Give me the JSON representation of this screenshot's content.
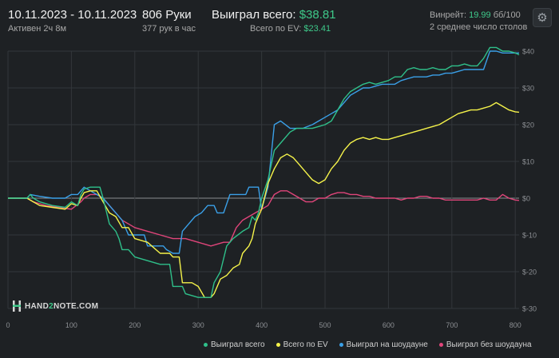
{
  "header": {
    "date_range": "10.11.2023 - 10.11.2023",
    "active_time": "Активен 2ч 8м",
    "hands": "806 Руки",
    "hands_per_hour": "377 рук в час",
    "won_total_label": "Выиграл всего:",
    "won_total_value": "$38.81",
    "ev_total_label": "Всего по EV:",
    "ev_total_value": "$23.41",
    "winrate_label": "Винрейт:",
    "winrate_value": "19.99",
    "winrate_unit": "бб/100",
    "tables_avg": "2 среднее число столов"
  },
  "logo": {
    "prefix": "HAND",
    "mid": "2",
    "suffix": "NOTE.COM"
  },
  "colors": {
    "background": "#1e2124",
    "won_total": "#2fc08a",
    "ev": "#f5f34a",
    "showdown": "#3aa0e8",
    "non_showdown": "#e0457a",
    "grid": "#33373b",
    "zero_line": "#8a8d90"
  },
  "chart_data": {
    "type": "line",
    "title": "",
    "xlabel": "",
    "ylabel": "",
    "xlim": [
      0,
      806
    ],
    "ylim": [
      -30,
      40
    ],
    "x_ticks": [
      0,
      100,
      200,
      300,
      400,
      500,
      600,
      700,
      800
    ],
    "y_ticks": [
      40,
      30,
      20,
      10,
      0,
      -10,
      -20,
      -30
    ],
    "y_tick_labels": [
      "$40",
      "$30",
      "$20",
      "$10",
      "$0",
      "$-10",
      "$-20",
      "$-30"
    ],
    "grid": true,
    "legend_position": "bottom",
    "series": [
      {
        "name": "Выиграл всего",
        "color_key": "won_total",
        "points": [
          [
            0,
            0
          ],
          [
            30,
            0
          ],
          [
            35,
            1
          ],
          [
            40,
            0
          ],
          [
            50,
            -1
          ],
          [
            70,
            -2
          ],
          [
            90,
            -2.5
          ],
          [
            100,
            -1
          ],
          [
            110,
            -2
          ],
          [
            115,
            1
          ],
          [
            120,
            2.5
          ],
          [
            130,
            3
          ],
          [
            145,
            3
          ],
          [
            150,
            0
          ],
          [
            160,
            -7
          ],
          [
            170,
            -9
          ],
          [
            175,
            -11
          ],
          [
            180,
            -14
          ],
          [
            190,
            -14
          ],
          [
            200,
            -16
          ],
          [
            220,
            -17
          ],
          [
            240,
            -18
          ],
          [
            255,
            -18
          ],
          [
            260,
            -24
          ],
          [
            275,
            -24
          ],
          [
            280,
            -26
          ],
          [
            300,
            -27
          ],
          [
            320,
            -27
          ],
          [
            325,
            -23
          ],
          [
            335,
            -20
          ],
          [
            345,
            -13
          ],
          [
            355,
            -11
          ],
          [
            370,
            -9
          ],
          [
            380,
            -8
          ],
          [
            385,
            -5
          ],
          [
            390,
            -6
          ],
          [
            395,
            -4
          ],
          [
            400,
            0
          ],
          [
            410,
            5
          ],
          [
            420,
            13
          ],
          [
            430,
            15
          ],
          [
            445,
            18
          ],
          [
            455,
            19
          ],
          [
            465,
            19
          ],
          [
            480,
            19
          ],
          [
            490,
            19.5
          ],
          [
            500,
            20
          ],
          [
            510,
            21
          ],
          [
            520,
            24
          ],
          [
            530,
            27
          ],
          [
            540,
            29
          ],
          [
            550,
            30
          ],
          [
            560,
            31
          ],
          [
            570,
            31.5
          ],
          [
            580,
            31
          ],
          [
            590,
            31.5
          ],
          [
            600,
            32
          ],
          [
            610,
            33
          ],
          [
            620,
            33
          ],
          [
            630,
            35
          ],
          [
            640,
            35.5
          ],
          [
            650,
            35
          ],
          [
            660,
            35
          ],
          [
            670,
            35.5
          ],
          [
            680,
            35
          ],
          [
            690,
            35
          ],
          [
            700,
            36
          ],
          [
            710,
            36
          ],
          [
            720,
            36.5
          ],
          [
            730,
            36
          ],
          [
            740,
            36
          ],
          [
            750,
            38
          ],
          [
            760,
            41
          ],
          [
            770,
            41
          ],
          [
            780,
            40
          ],
          [
            790,
            40
          ],
          [
            800,
            39.5
          ],
          [
            806,
            39
          ]
        ]
      },
      {
        "name": "Всего по EV",
        "color_key": "ev",
        "points": [
          [
            0,
            0
          ],
          [
            30,
            0
          ],
          [
            40,
            -1
          ],
          [
            50,
            -2
          ],
          [
            70,
            -2.5
          ],
          [
            90,
            -3
          ],
          [
            100,
            -1.5
          ],
          [
            110,
            -2
          ],
          [
            115,
            0
          ],
          [
            120,
            1.5
          ],
          [
            130,
            2
          ],
          [
            140,
            2
          ],
          [
            150,
            -1
          ],
          [
            160,
            -4
          ],
          [
            170,
            -5
          ],
          [
            180,
            -8
          ],
          [
            190,
            -8
          ],
          [
            200,
            -11
          ],
          [
            220,
            -12
          ],
          [
            240,
            -15
          ],
          [
            255,
            -15
          ],
          [
            260,
            -16
          ],
          [
            270,
            -16
          ],
          [
            275,
            -23
          ],
          [
            290,
            -23
          ],
          [
            300,
            -24
          ],
          [
            310,
            -27
          ],
          [
            320,
            -27
          ],
          [
            325,
            -26
          ],
          [
            335,
            -22
          ],
          [
            345,
            -21
          ],
          [
            355,
            -19
          ],
          [
            365,
            -18
          ],
          [
            370,
            -15
          ],
          [
            380,
            -13
          ],
          [
            385,
            -11
          ],
          [
            390,
            -7
          ],
          [
            395,
            -5
          ],
          [
            400,
            -3
          ],
          [
            410,
            4
          ],
          [
            420,
            8
          ],
          [
            430,
            11
          ],
          [
            440,
            12
          ],
          [
            450,
            11
          ],
          [
            460,
            9
          ],
          [
            470,
            7
          ],
          [
            480,
            5
          ],
          [
            490,
            4
          ],
          [
            500,
            5
          ],
          [
            510,
            8
          ],
          [
            520,
            10
          ],
          [
            530,
            13
          ],
          [
            540,
            15
          ],
          [
            550,
            16
          ],
          [
            560,
            16.5
          ],
          [
            570,
            16
          ],
          [
            580,
            16.5
          ],
          [
            590,
            16
          ],
          [
            600,
            16
          ],
          [
            610,
            16.5
          ],
          [
            620,
            17
          ],
          [
            630,
            17.5
          ],
          [
            640,
            18
          ],
          [
            650,
            18.5
          ],
          [
            660,
            19
          ],
          [
            670,
            19.5
          ],
          [
            680,
            20
          ],
          [
            690,
            21
          ],
          [
            700,
            22
          ],
          [
            710,
            23
          ],
          [
            720,
            23.5
          ],
          [
            730,
            24
          ],
          [
            740,
            24
          ],
          [
            750,
            24.5
          ],
          [
            760,
            25
          ],
          [
            770,
            26
          ],
          [
            780,
            25
          ],
          [
            790,
            24
          ],
          [
            800,
            23.5
          ],
          [
            806,
            23.4
          ]
        ]
      },
      {
        "name": "Выиграл на шоудауне",
        "color_key": "showdown",
        "points": [
          [
            0,
            0
          ],
          [
            30,
            0
          ],
          [
            35,
            1
          ],
          [
            50,
            0.5
          ],
          [
            70,
            0
          ],
          [
            90,
            0
          ],
          [
            100,
            1
          ],
          [
            110,
            1
          ],
          [
            115,
            2
          ],
          [
            120,
            3
          ],
          [
            130,
            2
          ],
          [
            140,
            1
          ],
          [
            150,
            0
          ],
          [
            160,
            -2
          ],
          [
            170,
            -4
          ],
          [
            180,
            -6
          ],
          [
            190,
            -10
          ],
          [
            200,
            -10
          ],
          [
            215,
            -10
          ],
          [
            220,
            -13
          ],
          [
            230,
            -13
          ],
          [
            245,
            -13
          ],
          [
            250,
            -14
          ],
          [
            260,
            -15
          ],
          [
            270,
            -15
          ],
          [
            275,
            -9
          ],
          [
            285,
            -7
          ],
          [
            295,
            -5
          ],
          [
            305,
            -4
          ],
          [
            315,
            -2
          ],
          [
            325,
            -2
          ],
          [
            330,
            -4
          ],
          [
            340,
            -4
          ],
          [
            350,
            1
          ],
          [
            360,
            1
          ],
          [
            375,
            1
          ],
          [
            380,
            3
          ],
          [
            395,
            3
          ],
          [
            400,
            -3
          ],
          [
            410,
            3
          ],
          [
            420,
            20
          ],
          [
            430,
            21
          ],
          [
            445,
            19
          ],
          [
            455,
            19
          ],
          [
            465,
            19
          ],
          [
            480,
            20
          ],
          [
            490,
            21
          ],
          [
            500,
            22
          ],
          [
            510,
            23
          ],
          [
            520,
            24
          ],
          [
            530,
            26
          ],
          [
            540,
            28
          ],
          [
            550,
            29
          ],
          [
            560,
            30
          ],
          [
            570,
            30
          ],
          [
            580,
            30.5
          ],
          [
            590,
            31
          ],
          [
            600,
            31
          ],
          [
            610,
            31
          ],
          [
            620,
            32
          ],
          [
            630,
            32.5
          ],
          [
            640,
            33
          ],
          [
            650,
            33
          ],
          [
            660,
            33
          ],
          [
            670,
            33.5
          ],
          [
            680,
            33.5
          ],
          [
            690,
            34
          ],
          [
            700,
            34
          ],
          [
            710,
            34.5
          ],
          [
            720,
            35
          ],
          [
            730,
            35
          ],
          [
            740,
            35
          ],
          [
            750,
            35
          ],
          [
            760,
            40
          ],
          [
            770,
            40
          ],
          [
            780,
            39.5
          ],
          [
            790,
            39.5
          ],
          [
            800,
            39.5
          ],
          [
            806,
            39.5
          ]
        ]
      },
      {
        "name": "Выиграл без шоудауна",
        "color_key": "non_showdown",
        "points": [
          [
            0,
            0
          ],
          [
            30,
            0
          ],
          [
            40,
            -1
          ],
          [
            60,
            -2
          ],
          [
            80,
            -2.5
          ],
          [
            100,
            -3
          ],
          [
            115,
            -1
          ],
          [
            120,
            0
          ],
          [
            130,
            1
          ],
          [
            140,
            1
          ],
          [
            150,
            0
          ],
          [
            160,
            -2
          ],
          [
            170,
            -4
          ],
          [
            180,
            -6
          ],
          [
            190,
            -7
          ],
          [
            200,
            -8
          ],
          [
            220,
            -9
          ],
          [
            240,
            -10
          ],
          [
            260,
            -11
          ],
          [
            280,
            -11
          ],
          [
            300,
            -12
          ],
          [
            320,
            -13
          ],
          [
            340,
            -12
          ],
          [
            350,
            -12
          ],
          [
            360,
            -8
          ],
          [
            370,
            -6
          ],
          [
            380,
            -5
          ],
          [
            390,
            -4
          ],
          [
            400,
            -3
          ],
          [
            410,
            -2
          ],
          [
            420,
            1
          ],
          [
            430,
            2
          ],
          [
            440,
            2
          ],
          [
            450,
            1
          ],
          [
            460,
            0
          ],
          [
            470,
            -1
          ],
          [
            480,
            -1
          ],
          [
            490,
            0
          ],
          [
            500,
            0
          ],
          [
            510,
            1
          ],
          [
            520,
            1.5
          ],
          [
            530,
            1.5
          ],
          [
            540,
            1
          ],
          [
            550,
            1
          ],
          [
            560,
            0.5
          ],
          [
            570,
            0.5
          ],
          [
            580,
            0
          ],
          [
            590,
            0
          ],
          [
            600,
            0
          ],
          [
            610,
            0
          ],
          [
            620,
            -0.5
          ],
          [
            630,
            0
          ],
          [
            640,
            0
          ],
          [
            650,
            0.5
          ],
          [
            660,
            0.5
          ],
          [
            670,
            0
          ],
          [
            680,
            0
          ],
          [
            690,
            -0.5
          ],
          [
            700,
            -0.5
          ],
          [
            710,
            -0.5
          ],
          [
            720,
            -0.5
          ],
          [
            730,
            -0.5
          ],
          [
            740,
            -0.5
          ],
          [
            750,
            0
          ],
          [
            760,
            -0.5
          ],
          [
            770,
            -0.5
          ],
          [
            780,
            1
          ],
          [
            790,
            0
          ],
          [
            800,
            -0.5
          ],
          [
            806,
            -0.6
          ]
        ]
      }
    ]
  }
}
